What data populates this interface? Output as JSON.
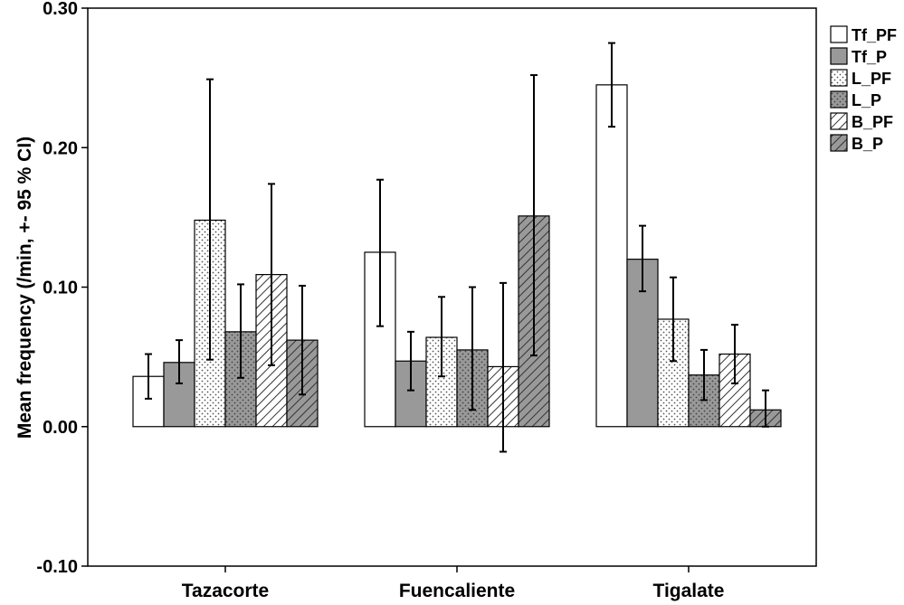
{
  "chart_data": {
    "type": "bar",
    "title": "",
    "xlabel": "",
    "ylabel": "Mean frequency (/min, +- 95 % CI)",
    "ylim": [
      -0.1,
      0.3
    ],
    "yticks": [
      -0.1,
      0.0,
      0.1,
      0.2,
      0.3
    ],
    "ytick_labels": [
      "-0.10",
      "0.00",
      "0.10",
      "0.20",
      "0.30"
    ],
    "grid": false,
    "legend_position": "right",
    "categories": [
      "Tazacorte",
      "Fuencaliente",
      "Tigalate"
    ],
    "series": [
      {
        "name": "Tf_PF",
        "fill": "#ffffff",
        "pattern": "solid",
        "values": [
          0.036,
          0.125,
          0.245
        ],
        "ci_low": [
          0.02,
          0.072,
          0.215
        ],
        "ci_high": [
          0.052,
          0.177,
          0.275
        ]
      },
      {
        "name": "Tf_P",
        "fill": "#999999",
        "pattern": "solid",
        "values": [
          0.046,
          0.047,
          0.12
        ],
        "ci_low": [
          0.031,
          0.026,
          0.097
        ],
        "ci_high": [
          0.062,
          0.068,
          0.144
        ]
      },
      {
        "name": "L_PF",
        "fill": "#ffffff",
        "pattern": "dots",
        "values": [
          0.148,
          0.064,
          0.077
        ],
        "ci_low": [
          0.048,
          0.036,
          0.047
        ],
        "ci_high": [
          0.249,
          0.093,
          0.107
        ]
      },
      {
        "name": "L_P",
        "fill": "#999999",
        "pattern": "dots",
        "values": [
          0.068,
          0.055,
          0.037
        ],
        "ci_low": [
          0.035,
          0.012,
          0.019
        ],
        "ci_high": [
          0.102,
          0.1,
          0.055
        ]
      },
      {
        "name": "B_PF",
        "fill": "#ffffff",
        "pattern": "hatch",
        "values": [
          0.109,
          0.043,
          0.052
        ],
        "ci_low": [
          0.044,
          -0.018,
          0.031
        ],
        "ci_high": [
          0.174,
          0.103,
          0.073
        ]
      },
      {
        "name": "B_P",
        "fill": "#999999",
        "pattern": "hatch",
        "values": [
          0.062,
          0.151,
          0.012
        ],
        "ci_low": [
          0.023,
          0.051,
          0.0
        ],
        "ci_high": [
          0.101,
          0.252,
          0.026
        ]
      }
    ]
  }
}
